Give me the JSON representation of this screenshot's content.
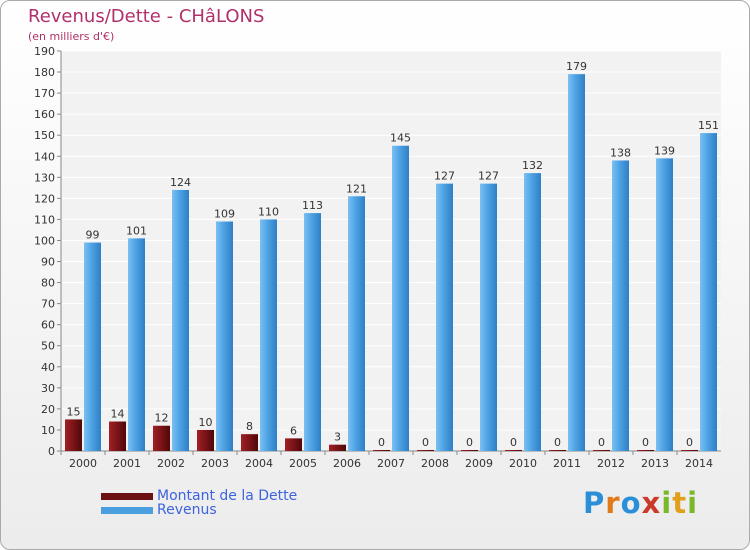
{
  "title": "Revenus/Dette - CHâLONS",
  "subtitle": "(en milliers d'€)",
  "legend": [
    {
      "label": "Montant de la Dette",
      "color": "#6b0f12"
    },
    {
      "label": "Revenus",
      "color": "#4a9fe0"
    }
  ],
  "logo": {
    "letters": [
      "P",
      "r",
      "o",
      "x",
      "i",
      "t",
      "i"
    ],
    "colors": [
      "#2a8fd8",
      "#e07a1a",
      "#2a8fd8",
      "#c93a2a",
      "#7ab82a",
      "#e0a01a",
      "#7ab82a"
    ]
  },
  "chart_data": {
    "type": "bar",
    "categories": [
      "2000",
      "2001",
      "2002",
      "2003",
      "2004",
      "2005",
      "2006",
      "2007",
      "2008",
      "2009",
      "2010",
      "2011",
      "2012",
      "2013",
      "2014"
    ],
    "series": [
      {
        "name": "Montant de la Dette",
        "values": [
          15,
          14,
          12,
          10,
          8,
          6,
          3,
          0,
          0,
          0,
          0,
          0,
          0,
          0,
          0
        ]
      },
      {
        "name": "Revenus",
        "values": [
          99,
          101,
          124,
          109,
          110,
          113,
          121,
          145,
          127,
          127,
          132,
          179,
          138,
          139,
          151
        ]
      }
    ],
    "ylim": [
      0,
      190
    ],
    "ytick_step": 10,
    "title": "Revenus/Dette - CHâLONS",
    "ylabel": "(en milliers d'€)"
  }
}
